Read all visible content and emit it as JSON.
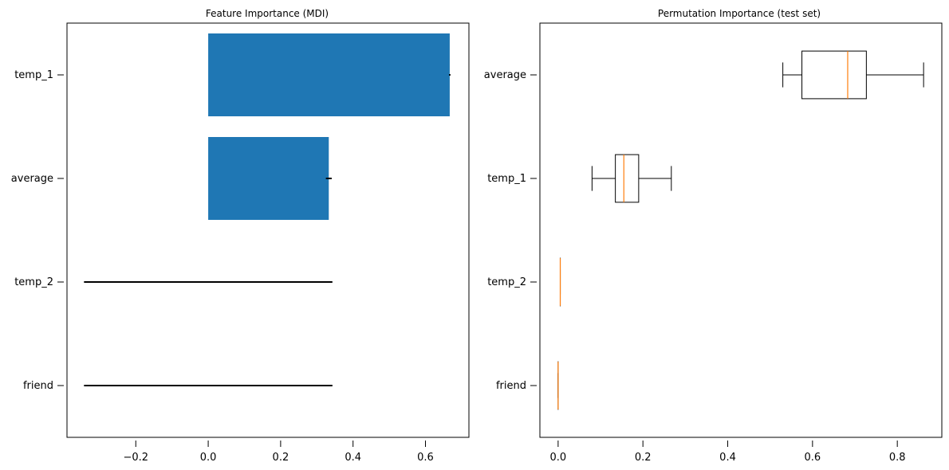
{
  "chart_data": [
    {
      "type": "bar",
      "orientation": "horizontal",
      "title": "Feature Importance (MDI)",
      "xlabel": "",
      "ylabel": "",
      "categories": [
        "friend",
        "temp_2",
        "average",
        "temp_1"
      ],
      "values": [
        0.0,
        0.0,
        0.333,
        0.667
      ],
      "errors": [
        0.343,
        0.343,
        0.008,
        0.002
      ],
      "xlim": [
        -0.39,
        0.72
      ],
      "xticks": [
        -0.2,
        0.0,
        0.2,
        0.4,
        0.6
      ],
      "xtick_labels": [
        "−0.2",
        "0.0",
        "0.2",
        "0.4",
        "0.6"
      ],
      "bar_color": "#1f77b4",
      "grid": false
    },
    {
      "type": "boxplot",
      "orientation": "horizontal",
      "title": "Permutation Importance (test set)",
      "xlabel": "",
      "ylabel": "",
      "categories": [
        "friend",
        "temp_2",
        "temp_1",
        "average"
      ],
      "boxes": [
        {
          "whislo": 0.0,
          "q1": 0.0,
          "med": 0.0,
          "q3": 0.0,
          "whishi": 0.0
        },
        {
          "whislo": 0.005,
          "q1": 0.005,
          "med": 0.005,
          "q3": 0.005,
          "whishi": 0.005
        },
        {
          "whislo": 0.08,
          "q1": 0.135,
          "med": 0.155,
          "q3": 0.19,
          "whishi": 0.267
        },
        {
          "whislo": 0.53,
          "q1": 0.575,
          "med": 0.683,
          "q3": 0.727,
          "whishi": 0.862
        }
      ],
      "xlim": [
        -0.043,
        0.905
      ],
      "xticks": [
        0.0,
        0.2,
        0.4,
        0.6,
        0.8
      ],
      "xtick_labels": [
        "0.0",
        "0.2",
        "0.4",
        "0.6",
        "0.8"
      ],
      "median_color": "#ff7f0e",
      "grid": false
    }
  ]
}
